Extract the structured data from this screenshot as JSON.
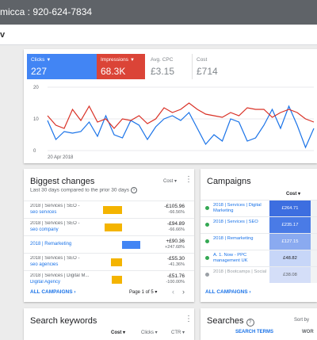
{
  "header": {
    "title": "micca : 920-624-7834",
    "crumb": "v"
  },
  "metrics": [
    {
      "label": "Clicks",
      "value": "227",
      "dropdown": true
    },
    {
      "label": "Impressions",
      "value": "68.3K",
      "dropdown": true
    },
    {
      "label": "Avg. CPC",
      "value": "£3.15",
      "dropdown": false
    },
    {
      "label": "Cost",
      "value": "£714",
      "dropdown": false
    }
  ],
  "chart_data": {
    "type": "line",
    "x_start_label": "20 Apr 2018",
    "ylim_left": [
      0,
      20
    ],
    "y_ticks": [
      "20",
      "10",
      "0"
    ],
    "series": [
      {
        "name": "Clicks",
        "color": "#1a73e8",
        "values": [
          9.5,
          3.5,
          6,
          5.5,
          6,
          9,
          4.5,
          11,
          5,
          4,
          9.5,
          8,
          3.5,
          7.5,
          10,
          11,
          9.5,
          12,
          7,
          2,
          5,
          3,
          10,
          9,
          3,
          4,
          8,
          13,
          7,
          14,
          8,
          1,
          7
        ]
      },
      {
        "name": "Impressions",
        "color": "#d93025",
        "values": [
          11,
          8,
          7,
          13,
          9.5,
          14,
          9,
          10,
          7,
          10,
          9.5,
          11,
          8.5,
          10,
          13.5,
          12,
          13,
          15,
          13,
          11.5,
          11,
          10.5,
          12,
          11,
          13.5,
          13,
          13,
          10.5,
          12,
          13,
          12,
          10,
          9
        ]
      }
    ]
  },
  "biggest_changes": {
    "title": "Biggest changes",
    "subtitle": "Last 30 days compared to the prior 30 days",
    "sort": "Cost",
    "rows": [
      {
        "line1": "2018 | Services | SEO -",
        "line2": "seo services",
        "v1": "-£105.96",
        "v2": "-66.56%",
        "bar_color": "#f4b400",
        "bar_share": 0.72,
        "negative": true
      },
      {
        "line1": "2018 | Services | SEO -",
        "line2": "seo company",
        "v1": "-£94.89",
        "v2": "-66.66%",
        "bar_color": "#f4b400",
        "bar_share": 0.66,
        "negative": true
      },
      {
        "line1": "",
        "line2": "2018 | Remarketing",
        "v1": "+£90.36",
        "v2": "+247.68%",
        "bar_color": "#4285f4",
        "bar_share": 0.68,
        "negative": false
      },
      {
        "line1": "2018 | Services | SEO -",
        "line2": "seo agencies",
        "v1": "-£55.30",
        "v2": "-41.36%",
        "bar_color": "#f4b400",
        "bar_share": 0.4,
        "negative": true
      },
      {
        "line1": "2018 | Services | Digital M...",
        "line2": "Digital Agency",
        "v1": "-£51.76",
        "v2": "-100.00%",
        "bar_color": "#f4b400",
        "bar_share": 0.38,
        "negative": true
      }
    ],
    "footer_link": "ALL CAMPAIGNS",
    "pager": "Page 1 of 5"
  },
  "campaigns": {
    "title": "Campaigns",
    "cost_header": "Cost",
    "rows": [
      {
        "name": "2018 | Services | Digital Marketing",
        "cost": "£264.71",
        "status_color": "#34a853",
        "shade": "#3d6ee0",
        "text_color": "#ffffff"
      },
      {
        "name": "2018 | Services | SEO",
        "cost": "£235.17",
        "status_color": "#34a853",
        "shade": "#4a7be6",
        "text_color": "#ffffff"
      },
      {
        "name": "2018 | Remarketing",
        "cost": "£127.15",
        "status_color": "#34a853",
        "shade": "#8aaaf0",
        "text_color": "#ffffff"
      },
      {
        "name": "A. 1. Now - PPC management UK",
        "cost": "£48.82",
        "status_color": "#34a853",
        "shade": "#c7d6f8",
        "text_color": "#202124"
      },
      {
        "name": "2018 | Bootcamps | Social",
        "cost": "£38.08",
        "status_color": "#9aa0a6",
        "shade": "#d4def8",
        "text_color": "#5f6368"
      }
    ],
    "footer_link": "ALL CAMPAIGNS"
  },
  "search_keywords": {
    "title": "Search keywords",
    "cols": [
      "Cost",
      "Clicks",
      "CTR"
    ]
  },
  "searches": {
    "title": "Searches",
    "sort_label": "Sort by",
    "tab1": "SEARCH TERMS",
    "tab2": "WOR"
  }
}
